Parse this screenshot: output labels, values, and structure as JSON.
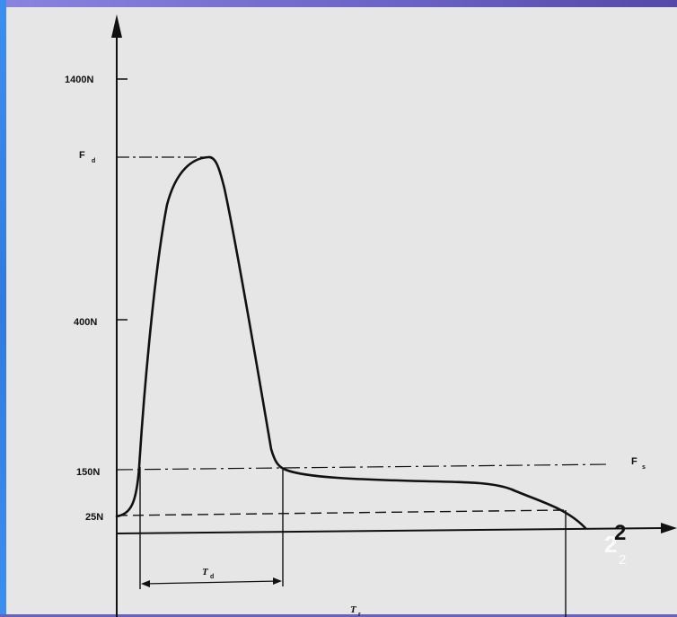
{
  "slide": {
    "page_number": "2",
    "page_number_shadow": "2",
    "page_number_sub": "2"
  },
  "diagram": {
    "y_labels": {
      "y1400": "1400N",
      "fd": "F",
      "fd_sub": "d",
      "y400": "400N",
      "y150": "150N",
      "y25": "25N"
    },
    "fs_label": "F",
    "fs_sub": "s",
    "td_label": "T",
    "td_sub": "d",
    "tr_label": "T",
    "tr_sub": "r"
  },
  "colors": {
    "paper": "#e6e6e6",
    "ink": "#111111",
    "frame_purple": "#6a62b8",
    "frame_blue": "#3a8ff0",
    "page_number": "#111111",
    "page_number_ghost": "#ffffff"
  }
}
